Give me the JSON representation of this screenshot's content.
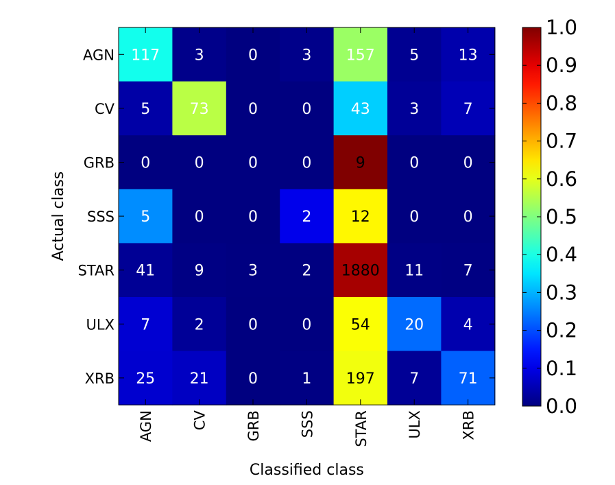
{
  "chart_data": {
    "type": "heatmap",
    "xlabel": "Classified class",
    "ylabel": "Actual class",
    "x_categories": [
      "AGN",
      "CV",
      "GRB",
      "SSS",
      "STAR",
      "ULX",
      "XRB"
    ],
    "y_categories": [
      "AGN",
      "CV",
      "GRB",
      "SSS",
      "STAR",
      "ULX",
      "XRB"
    ],
    "values": [
      [
        117,
        3,
        0,
        3,
        157,
        5,
        13
      ],
      [
        5,
        73,
        0,
        0,
        43,
        3,
        7
      ],
      [
        0,
        0,
        0,
        0,
        9,
        0,
        0
      ],
      [
        5,
        0,
        0,
        2,
        12,
        0,
        0
      ],
      [
        41,
        9,
        3,
        2,
        1880,
        11,
        7
      ],
      [
        7,
        2,
        0,
        0,
        54,
        20,
        4
      ],
      [
        25,
        21,
        0,
        1,
        197,
        7,
        71
      ]
    ],
    "color_scale": {
      "colormap": "jet",
      "normalization": "row",
      "range": [
        0.0,
        1.0
      ],
      "ticks": [
        "0.0",
        "0.1",
        "0.2",
        "0.3",
        "0.4",
        "0.5",
        "0.6",
        "0.7",
        "0.8",
        "0.9",
        "1.0"
      ]
    },
    "grid": false
  }
}
